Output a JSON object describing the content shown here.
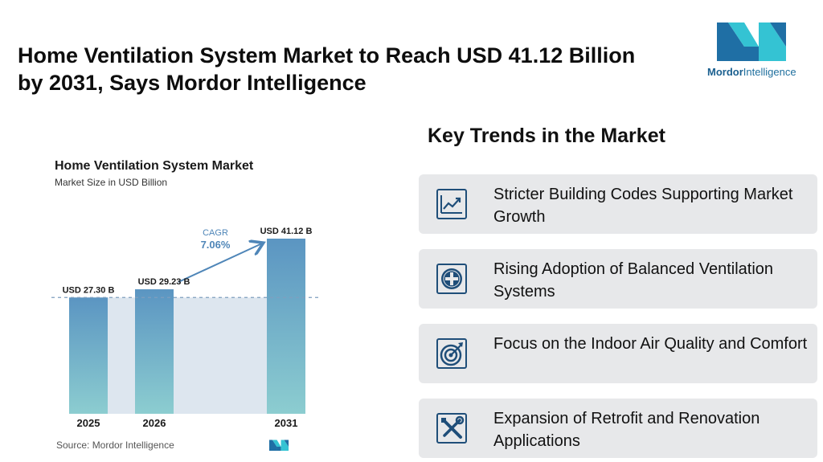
{
  "headline": "Home Ventilation System Market to Reach USD 41.12 Billion by 2031, Says Mordor Intelligence",
  "brand": {
    "name_bold": "Mordor",
    "name_rest": "Intelligence",
    "colors": {
      "teal": "#34c3d3",
      "blue": "#1f6fa5"
    }
  },
  "chart_data": {
    "type": "bar",
    "title": "Home Ventilation System Market",
    "subtitle": "Market Size in USD Billion",
    "categories": [
      "2025",
      "2026",
      "2031"
    ],
    "values": [
      27.3,
      29.23,
      41.12
    ],
    "data_labels": [
      "USD 27.30 B",
      "USD 29.23 B",
      "USD 41.12 B"
    ],
    "cagr_label": "CAGR",
    "cagr_value": "7.06%",
    "ylim": [
      0,
      41.12
    ],
    "colors": {
      "bar_top": "#5b95c2",
      "bar_bottom": "#8ccdd0",
      "band": "#dde6ef",
      "cagr": "#4f86b8"
    }
  },
  "source": "Source:  Mordor Intelligence",
  "trends": {
    "title": "Key Trends in the Market",
    "items": [
      {
        "text": "Stricter Building Codes Supporting Market Growth",
        "icon": "line-chart-icon"
      },
      {
        "text": "Rising Adoption of Balanced Ventilation Systems",
        "icon": "plus-circle-icon"
      },
      {
        "text": "Focus on the Indoor Air Quality and Comfort",
        "icon": "target-icon"
      },
      {
        "text": "Expansion of Retrofit and Renovation Applications",
        "icon": "tools-icon"
      }
    ]
  }
}
